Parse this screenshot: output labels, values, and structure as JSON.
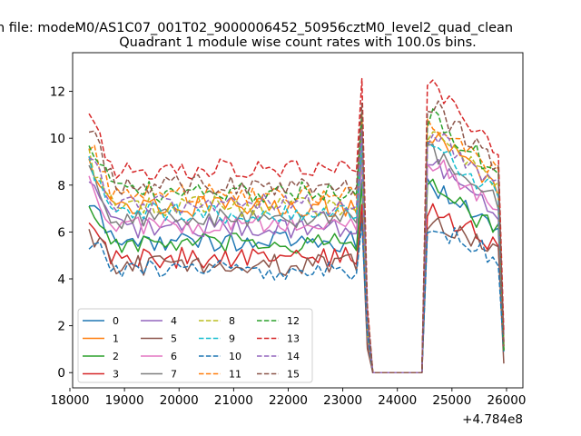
{
  "suptitle": "n file: modeM0/AS1C07_001T02_9000006452_50956cztM0_level2_quad_clean",
  "chart_data": {
    "type": "line",
    "title": "Quadrant 1 module wise count rates with 100.0s bins.",
    "xlabel": "",
    "ylabel": "",
    "x_offset_label": "+4.784e8",
    "xlim": [
      18050,
      26300
    ],
    "ylim": [
      -0.65,
      13.65
    ],
    "x_ticks": [
      18000,
      19000,
      20000,
      21000,
      22000,
      23000,
      24000,
      25000,
      26000
    ],
    "y_ticks": [
      0,
      2,
      4,
      6,
      8,
      10,
      12
    ],
    "grid": false,
    "legend": {
      "placement": "lower-left",
      "columns": 4
    },
    "x": [
      18350,
      18450,
      18550,
      18650,
      18750,
      18850,
      18950,
      19050,
      19150,
      19250,
      19350,
      19450,
      19550,
      19650,
      19750,
      19850,
      19950,
      20050,
      20150,
      20250,
      20350,
      20450,
      20550,
      20650,
      20750,
      20850,
      20950,
      21050,
      21150,
      21250,
      21350,
      21450,
      21550,
      21650,
      21750,
      21850,
      21950,
      22050,
      22150,
      22250,
      22350,
      22450,
      22550,
      22650,
      22750,
      22850,
      22950,
      23050,
      23150,
      23250,
      23350,
      23450,
      23550,
      23650,
      23750,
      23850,
      23950,
      24050,
      24150,
      24250,
      24350,
      24450,
      24550,
      24650,
      24750,
      24850,
      24950,
      25050,
      25150,
      25250,
      25350,
      25450,
      25550,
      25650,
      25750,
      25850,
      25950
    ],
    "series": [
      {
        "name": "0",
        "color": "#1f77b4",
        "dash": "solid",
        "level": 5.6
      },
      {
        "name": "1",
        "color": "#ff7f0e",
        "dash": "solid",
        "level": 7.1
      },
      {
        "name": "2",
        "color": "#2ca02c",
        "dash": "solid",
        "level": 5.5
      },
      {
        "name": "3",
        "color": "#d62728",
        "dash": "solid",
        "level": 4.9
      },
      {
        "name": "4",
        "color": "#9467bd",
        "dash": "solid",
        "level": 6.2
      },
      {
        "name": "5",
        "color": "#8c564b",
        "dash": "solid",
        "level": 4.6
      },
      {
        "name": "6",
        "color": "#e377c2",
        "dash": "solid",
        "level": 6.3
      },
      {
        "name": "7",
        "color": "#7f7f7f",
        "dash": "solid",
        "level": 6.6
      },
      {
        "name": "8",
        "color": "#bcbd22",
        "dash": "dashed",
        "level": 7.1
      },
      {
        "name": "9",
        "color": "#17becf",
        "dash": "dashed",
        "level": 6.8
      },
      {
        "name": "10",
        "color": "#1f77b4",
        "dash": "dashed",
        "level": 4.4
      },
      {
        "name": "11",
        "color": "#ff7f0e",
        "dash": "dashed",
        "level": 7.6
      },
      {
        "name": "12",
        "color": "#2ca02c",
        "dash": "dashed",
        "level": 7.7
      },
      {
        "name": "13",
        "color": "#d62728",
        "dash": "dashed",
        "level": 8.7
      },
      {
        "name": "14",
        "color": "#9467bd",
        "dash": "dashed",
        "level": 7.2
      },
      {
        "name": "15",
        "color": "#8c564b",
        "dash": "dashed",
        "level": 8.0
      }
    ]
  }
}
